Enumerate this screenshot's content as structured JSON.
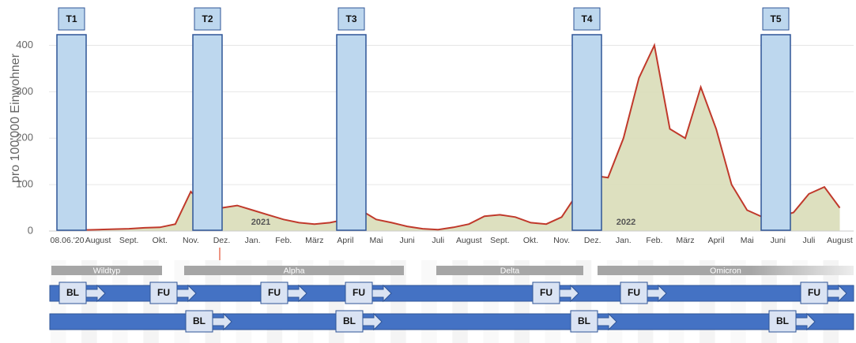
{
  "chart_data": {
    "type": "area",
    "y_label": "pro 100'000 Einwohner",
    "categories": [
      "08.06.'20",
      null,
      "August",
      null,
      "Sept.",
      null,
      "Okt.",
      null,
      "Nov.",
      null,
      "Dez.",
      null,
      "Jan.",
      null,
      "Feb.",
      null,
      "März",
      null,
      "April",
      null,
      "Mai",
      null,
      "Juni",
      null,
      "Juli",
      null,
      "August",
      null,
      "Sept.",
      null,
      "Okt.",
      null,
      "Nov.",
      null,
      "Dez.",
      null,
      "Jan.",
      null,
      "Feb.",
      null,
      "März",
      null,
      "April",
      null,
      "Mai",
      null,
      "Juni",
      null,
      "Juli",
      null,
      "August"
    ],
    "values": [
      2,
      2,
      3,
      4,
      5,
      7,
      8,
      15,
      85,
      50,
      50,
      55,
      45,
      35,
      25,
      18,
      15,
      18,
      25,
      45,
      25,
      18,
      10,
      5,
      3,
      8,
      15,
      32,
      35,
      30,
      18,
      15,
      30,
      80,
      120,
      115,
      200,
      330,
      400,
      220,
      200,
      310,
      220,
      100,
      45,
      30,
      30,
      40,
      80,
      95,
      50
    ],
    "color": "#c0392b",
    "fill": "#d9ddb8",
    "ylim": [
      0,
      440
    ],
    "yticks": [
      0,
      100,
      200,
      300,
      400
    ],
    "grid": true,
    "year_labels": [
      "2021",
      "2022"
    ],
    "timepoints": [
      "T1",
      "T2",
      "T3",
      "T4",
      "T5"
    ],
    "variants": [
      "Wildtyp",
      "Alpha",
      "Delta",
      "Omicron"
    ],
    "cohort_rows": [
      [
        "BL",
        "FU",
        "FU",
        "FU",
        "FU",
        "FU",
        "FU"
      ],
      [
        "BL",
        "BL",
        "BL",
        "BL"
      ]
    ]
  }
}
